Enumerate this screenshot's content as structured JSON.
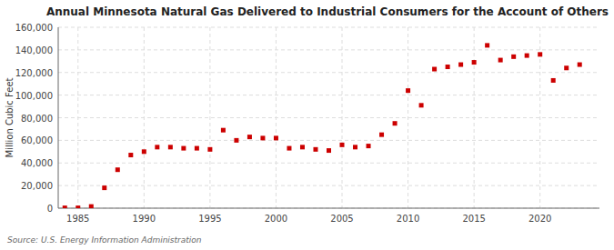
{
  "chart_data": {
    "type": "scatter",
    "title": "Annual Minnesota Natural Gas Delivered to Industrial Consumers for the Account of Others",
    "ylabel": "Million Cubic Feet",
    "annotations": [
      "Source: U.S. Energy Information Administration"
    ],
    "x": [
      1984,
      1985,
      1986,
      1987,
      1988,
      1989,
      1990,
      1991,
      1992,
      1993,
      1994,
      1995,
      1996,
      1997,
      1998,
      1999,
      2000,
      2001,
      2002,
      2003,
      2004,
      2005,
      2006,
      2007,
      2008,
      2009,
      2010,
      2011,
      2012,
      2013,
      2014,
      2015,
      2016,
      2017,
      2018,
      2019,
      2020,
      2021,
      2022,
      2023
    ],
    "values": [
      300,
      300,
      1500,
      18000,
      34000,
      47000,
      50000,
      54000,
      54000,
      53000,
      53000,
      52000,
      69000,
      60000,
      63000,
      62000,
      62000,
      53000,
      54000,
      52000,
      51000,
      56000,
      54000,
      55000,
      65000,
      75000,
      104000,
      91000,
      123000,
      125000,
      127000,
      129000,
      144000,
      131000,
      134000,
      135000,
      136000,
      113000,
      124000,
      127000
    ],
    "color": "#cc0000",
    "marker": "square",
    "grid": true,
    "xlim": [
      1983.5,
      2024.5
    ],
    "xticks": [
      1985,
      1990,
      1995,
      2000,
      2005,
      2010,
      2015,
      2020
    ],
    "ylim": [
      0,
      160000
    ],
    "yticks": [
      0,
      {
        "value": 20000,
        "label": "20,000"
      },
      {
        "value": 40000,
        "label": "40,000"
      },
      {
        "value": 60000,
        "label": "60,000"
      },
      {
        "value": 80000,
        "label": "80,000"
      },
      {
        "value": 100000,
        "label": "100,000"
      },
      {
        "value": 120000,
        "label": "120,000"
      },
      {
        "value": 140000,
        "label": "140,000"
      },
      {
        "value": 160000,
        "label": "160,000"
      }
    ]
  }
}
